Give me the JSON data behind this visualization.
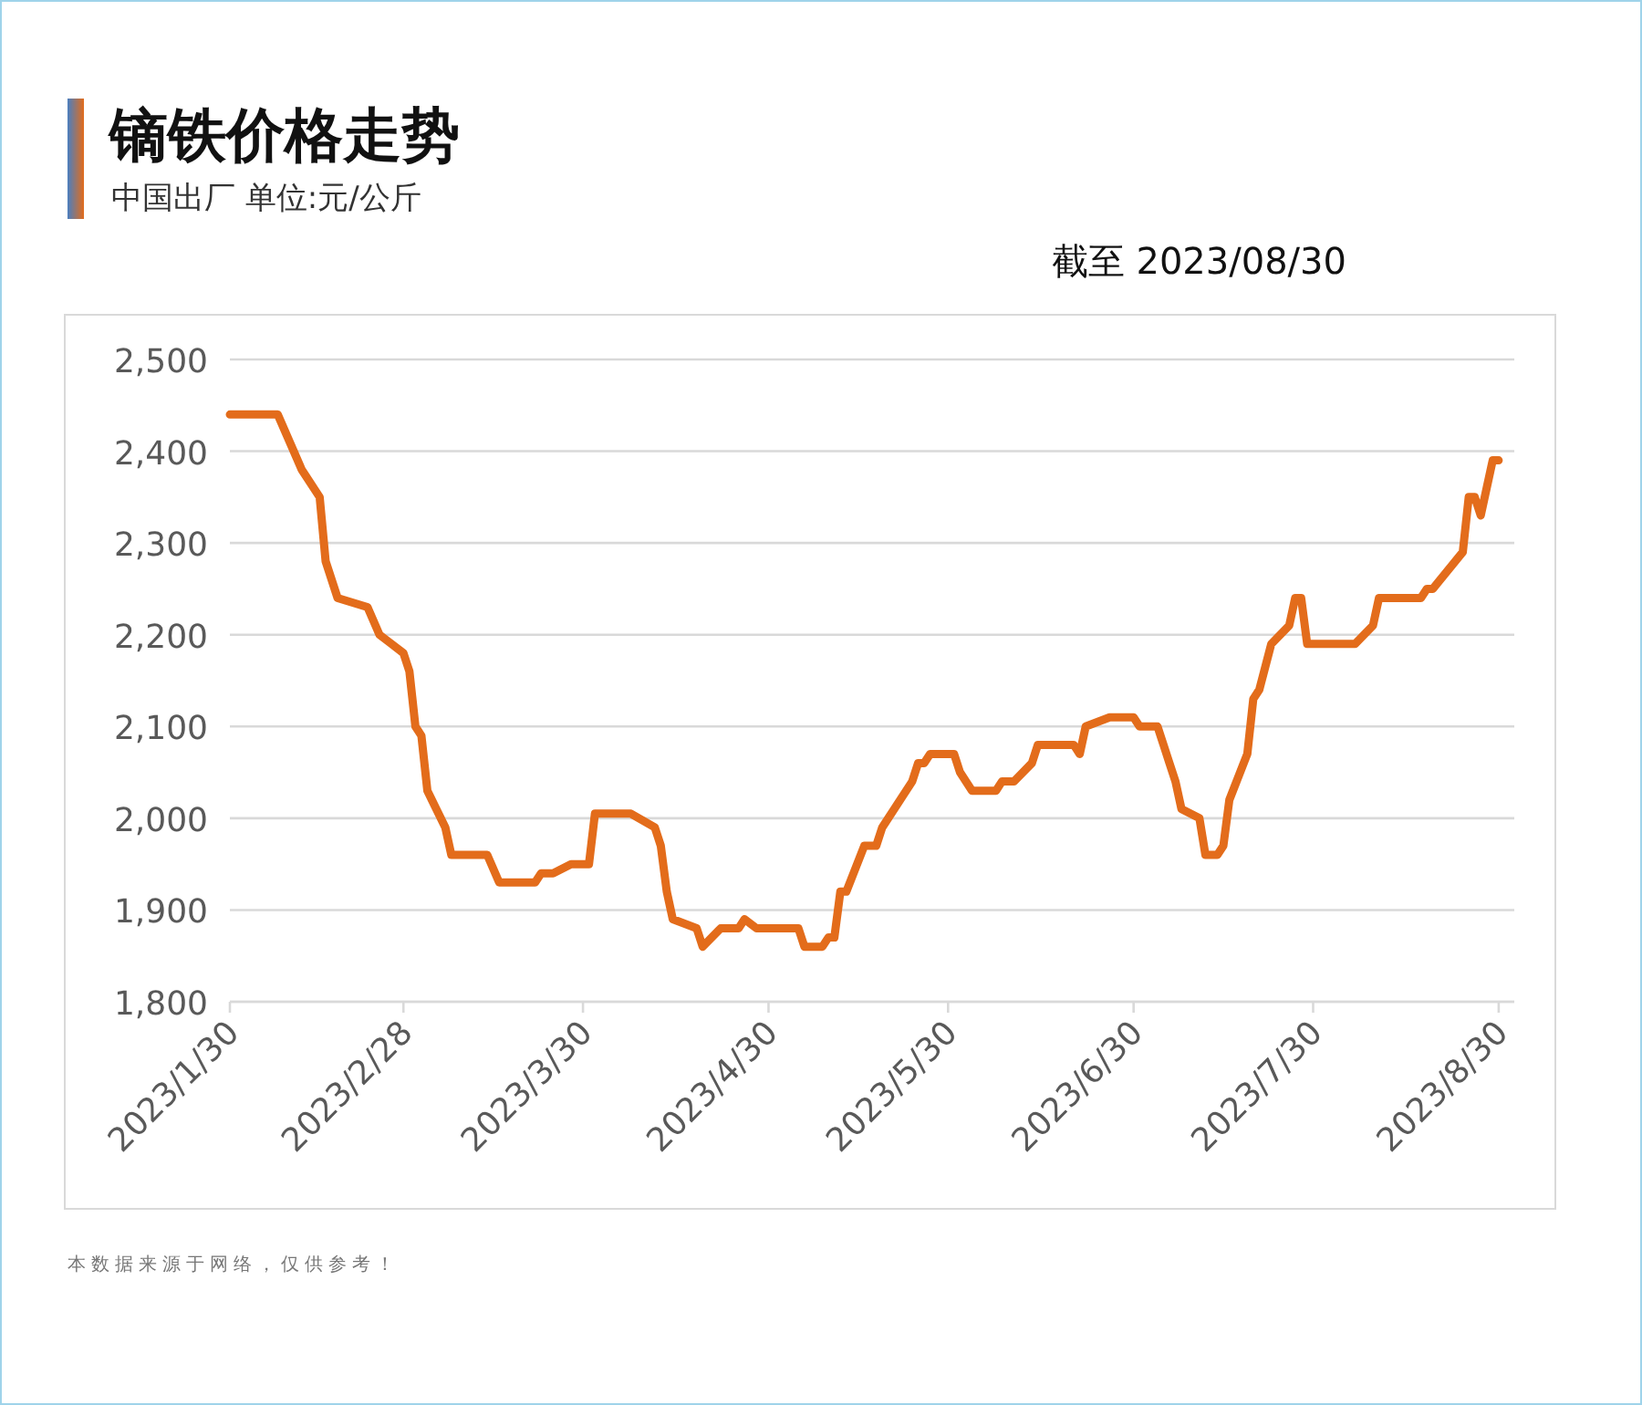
{
  "chart_data": {
    "type": "line",
    "title": "镝铁价格走势",
    "subtitle": "中国出厂  单位:元/公斤",
    "annotations": [
      "截至 2023/08/30",
      "本数据来源于网络，仅供参考！"
    ],
    "x": [
      "2023-01-30",
      "2023-02-07",
      "2023-02-11",
      "2023-02-14",
      "2023-02-15",
      "2023-02-17",
      "2023-02-22",
      "2023-02-24",
      "2023-02-26",
      "2023-02-28",
      "2023-03-01",
      "2023-03-02",
      "2023-03-03",
      "2023-03-04",
      "2023-03-07",
      "2023-03-08",
      "2023-03-14",
      "2023-03-16",
      "2023-03-22",
      "2023-03-23",
      "2023-03-25",
      "2023-03-28",
      "2023-03-31",
      "2023-04-01",
      "2023-04-07",
      "2023-04-11",
      "2023-04-12",
      "2023-04-13",
      "2023-04-14",
      "2023-04-18",
      "2023-04-19",
      "2023-04-22",
      "2023-04-25",
      "2023-04-26",
      "2023-04-28",
      "2023-05-05",
      "2023-05-06",
      "2023-05-09",
      "2023-05-10",
      "2023-05-11",
      "2023-05-12",
      "2023-05-13",
      "2023-05-16",
      "2023-05-18",
      "2023-05-19",
      "2023-05-24",
      "2023-05-25",
      "2023-05-26",
      "2023-05-27",
      "2023-05-31",
      "2023-06-01",
      "2023-06-03",
      "2023-06-07",
      "2023-06-08",
      "2023-06-10",
      "2023-06-13",
      "2023-06-14",
      "2023-06-20",
      "2023-06-21",
      "2023-06-22",
      "2023-06-26",
      "2023-06-30",
      "2023-07-01",
      "2023-07-04",
      "2023-07-06",
      "2023-07-07",
      "2023-07-08",
      "2023-07-11",
      "2023-07-12",
      "2023-07-14",
      "2023-07-15",
      "2023-07-16",
      "2023-07-19",
      "2023-07-20",
      "2023-07-21",
      "2023-07-23",
      "2023-07-26",
      "2023-07-27",
      "2023-07-28",
      "2023-07-29",
      "2023-08-06",
      "2023-08-09",
      "2023-08-10",
      "2023-08-17",
      "2023-08-18",
      "2023-08-19",
      "2023-08-24",
      "2023-08-25",
      "2023-08-26",
      "2023-08-27",
      "2023-08-28",
      "2023-08-29",
      "2023-08-30"
    ],
    "series": [
      {
        "color": "#e36c1b",
        "values": [
          2440,
          2440,
          2380,
          2350,
          2280,
          2240,
          2230,
          2200,
          2190,
          2180,
          2160,
          2100,
          2090,
          2030,
          1990,
          1960,
          1960,
          1930,
          1930,
          1940,
          1940,
          1950,
          1950,
          2005,
          2005,
          1990,
          1970,
          1920,
          1890,
          1880,
          1860,
          1880,
          1880,
          1890,
          1880,
          1880,
          1860,
          1860,
          1870,
          1870,
          1920,
          1920,
          1970,
          1970,
          1990,
          2040,
          2060,
          2060,
          2070,
          2070,
          2050,
          2030,
          2030,
          2040,
          2040,
          2060,
          2080,
          2080,
          2070,
          2100,
          2110,
          2110,
          2100,
          2100,
          2060,
          2040,
          2010,
          2000,
          1960,
          1960,
          1970,
          2020,
          2070,
          2130,
          2140,
          2190,
          2210,
          2240,
          2240,
          2190,
          2190,
          2210,
          2240,
          2240,
          2250,
          2250,
          2290,
          2350,
          2350,
          2330,
          2360,
          2390,
          2390
        ]
      }
    ],
    "xlim": [
      "2023-01-30",
      "2023-09-01"
    ],
    "xticks": [
      {
        "value": "2023-01-30",
        "label": "2023/1/30"
      },
      {
        "value": "2023-02-28",
        "label": "2023/2/28"
      },
      {
        "value": "2023-03-30",
        "label": "2023/3/30"
      },
      {
        "value": "2023-04-30",
        "label": "2023/4/30"
      },
      {
        "value": "2023-05-30",
        "label": "2023/5/30"
      },
      {
        "value": "2023-06-30",
        "label": "2023/6/30"
      },
      {
        "value": "2023-07-30",
        "label": "2023/7/30"
      },
      {
        "value": "2023-08-30",
        "label": "2023/8/30"
      }
    ],
    "ylim": [
      1800,
      2500
    ],
    "yticks": [
      {
        "value": 1800,
        "label": "1,800"
      },
      {
        "value": 1900,
        "label": "1,900"
      },
      {
        "value": 2000,
        "label": "2,000"
      },
      {
        "value": 2100,
        "label": "2,100"
      },
      {
        "value": 2200,
        "label": "2,200"
      },
      {
        "value": 2300,
        "label": "2,300"
      },
      {
        "value": 2400,
        "label": "2,400"
      },
      {
        "value": 2500,
        "label": "2,500"
      }
    ],
    "grid": "y",
    "marker": "none",
    "line_style": "solid"
  }
}
